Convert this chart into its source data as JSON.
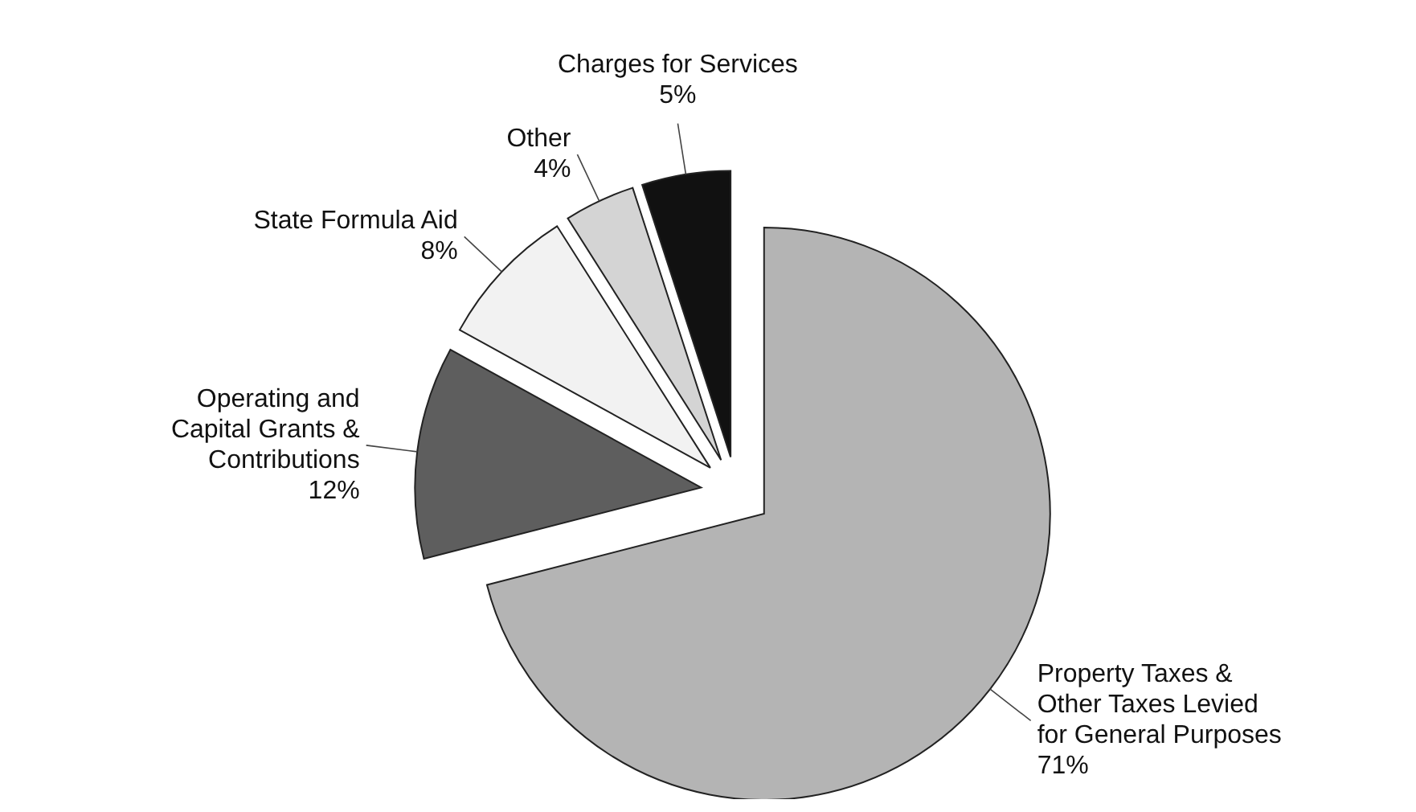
{
  "chart_data": {
    "type": "pie",
    "categories": [
      "Property Taxes & Other Taxes Levied for General Purposes",
      "Operating and Capital Grants & Contributions",
      "State Formula Aid",
      "Other",
      "Charges for Services"
    ],
    "values": [
      71,
      12,
      8,
      4,
      5
    ],
    "value_labels": [
      "71%",
      "12%",
      "8%",
      "4%",
      "5%"
    ],
    "colors": [
      "#b4b4b4",
      "#5e5e5e",
      "#f2f2f2",
      "#d4d4d4",
      "#111111"
    ]
  }
}
